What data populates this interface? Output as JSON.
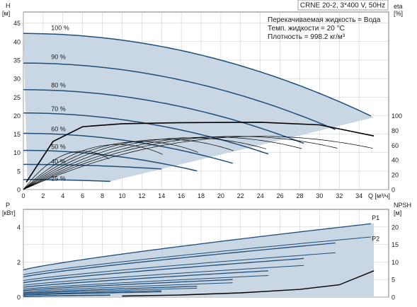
{
  "header": {
    "model": "CRNE 20-2, 3*400 V, 50Hz",
    "fluid": "Перекачиваемая жидкость = Вода",
    "temperature": "Темп. жидкости = 20 °C",
    "density": "Плотность = 998.2 кг/м³"
  },
  "colors": {
    "band": "#c9d6e3",
    "curve_dark": "#1f4e79",
    "curve_black": "#000000",
    "grid": "#c8c8c8"
  },
  "chart_data": [
    {
      "type": "line",
      "name_ref": "head-chart",
      "ylabel_main": "H",
      "ylabel_unit": "[м]",
      "ylabel_right": "eta",
      "ylabel_right_unit": "[%]",
      "xlabel": "Q [м³/ч]",
      "xlim": [
        0,
        37
      ],
      "ylim": [
        0,
        48
      ],
      "xticks": [
        0,
        2,
        4,
        6,
        8,
        10,
        12,
        14,
        16,
        18,
        20,
        22,
        24,
        26,
        28,
        30,
        32,
        34
      ],
      "yticks": [
        0,
        5,
        10,
        15,
        20,
        25,
        30,
        35,
        40,
        45
      ],
      "eta_ticks": [
        0,
        20,
        40,
        60,
        80,
        100
      ],
      "eta_scale_per_head_unit": 0.2,
      "speed_labels": [
        {
          "label": "100 %",
          "x": 2.1,
          "y": 44.7
        },
        {
          "label": "90 %",
          "x": 2.1,
          "y": 36.8
        },
        {
          "label": "80 %",
          "x": 2.1,
          "y": 29.2
        },
        {
          "label": "70 %",
          "x": 2.1,
          "y": 22.8
        },
        {
          "label": "60 %",
          "x": 2.1,
          "y": 17.3
        },
        {
          "label": "50 %",
          "x": 2.1,
          "y": 12.5
        },
        {
          "label": "40 %",
          "x": 2.1,
          "y": 8.5
        },
        {
          "label": "25 %",
          "x": 2.1,
          "y": 3.9
        }
      ],
      "series": [
        {
          "speed": 1.0,
          "h0": 42.2,
          "a": 0.018,
          "qmax": 35.5
        },
        {
          "speed": 0.9,
          "h0": 34.2,
          "a": 0.018,
          "qmax": 31.9
        },
        {
          "speed": 0.8,
          "h0": 27.0,
          "a": 0.018,
          "qmax": 28.4
        },
        {
          "speed": 0.7,
          "h0": 20.7,
          "a": 0.018,
          "qmax": 24.8
        },
        {
          "speed": 0.6,
          "h0": 15.2,
          "a": 0.018,
          "qmax": 21.3
        },
        {
          "speed": 0.5,
          "h0": 10.6,
          "a": 0.018,
          "qmax": 17.7
        },
        {
          "speed": 0.4,
          "h0": 6.8,
          "a": 0.018,
          "qmax": 14.2
        },
        {
          "speed": 0.25,
          "h0": 2.7,
          "a": 0.018,
          "qmax": 8.9
        }
      ],
      "eta_series": [
        {
          "speed": 1.0,
          "peak_eta": 72,
          "q_peak": 24.0,
          "qmax": 35.5
        },
        {
          "speed": 0.9,
          "peak_eta": 72,
          "q_peak": 21.6,
          "qmax": 31.9
        },
        {
          "speed": 0.8,
          "peak_eta": 71,
          "q_peak": 19.2,
          "qmax": 28.4
        },
        {
          "speed": 0.7,
          "peak_eta": 70,
          "q_peak": 16.8,
          "qmax": 24.8
        },
        {
          "speed": 0.6,
          "peak_eta": 68,
          "q_peak": 14.4,
          "qmax": 21.3
        },
        {
          "speed": 0.5,
          "peak_eta": 65,
          "q_peak": 12.0,
          "qmax": 17.7
        },
        {
          "speed": 0.4,
          "peak_eta": 61,
          "q_peak": 9.6,
          "qmax": 14.2
        },
        {
          "speed": 0.25,
          "peak_eta": 52,
          "q_peak": 6.0,
          "qmax": 8.9
        }
      ],
      "eta_envelope": [
        {
          "q": 0.3,
          "h": 2
        },
        {
          "q": 3,
          "h": 13
        },
        {
          "q": 6,
          "h": 17
        },
        {
          "q": 10,
          "h": 17.8
        },
        {
          "q": 16,
          "h": 18.1
        },
        {
          "q": 24,
          "h": 18.2
        },
        {
          "q": 30,
          "h": 17.5
        },
        {
          "q": 35.5,
          "h": 14.5
        }
      ]
    },
    {
      "type": "line",
      "name_ref": "power-chart",
      "ylabel_main": "P",
      "ylabel_unit": "[кВт]",
      "ylabel_right": "NPSH",
      "ylabel_right_unit": "[м]",
      "xlim": [
        0,
        37
      ],
      "ylim": [
        0,
        5
      ],
      "yticks": [
        0,
        2,
        4
      ],
      "npsh_ticks": [
        0,
        5,
        10,
        15,
        20
      ],
      "npsh_scale_per_kw": 5,
      "labels": [
        {
          "label": "P1",
          "x": 35.0,
          "y": 4.4
        },
        {
          "label": "P2",
          "x": 35.0,
          "y": 3.2
        }
      ],
      "p1_series": [
        {
          "speed": 1.0,
          "p0": 1.55,
          "pmax": 4.2,
          "qmax": 35.5
        },
        {
          "speed": 0.9,
          "p0": 1.15,
          "pmax": 3.1,
          "qmax": 31.9
        },
        {
          "speed": 0.8,
          "p0": 0.82,
          "pmax": 2.2,
          "qmax": 28.4
        },
        {
          "speed": 0.7,
          "p0": 0.56,
          "pmax": 1.5,
          "qmax": 24.8
        },
        {
          "speed": 0.6,
          "p0": 0.38,
          "pmax": 1.0,
          "qmax": 21.3
        },
        {
          "speed": 0.5,
          "p0": 0.24,
          "pmax": 0.62,
          "qmax": 17.7
        },
        {
          "speed": 0.4,
          "p0": 0.14,
          "pmax": 0.36,
          "qmax": 14.2
        },
        {
          "speed": 0.25,
          "p0": 0.05,
          "pmax": 0.12,
          "qmax": 8.9
        }
      ],
      "p2_factor": 0.82,
      "npsh_curve": [
        {
          "q": 10,
          "npsh": 0.3
        },
        {
          "q": 16,
          "npsh": 0.6
        },
        {
          "q": 22,
          "npsh": 1.2
        },
        {
          "q": 28,
          "npsh": 2.2
        },
        {
          "q": 32,
          "npsh": 3.5
        },
        {
          "q": 35.5,
          "npsh": 7.5
        }
      ]
    }
  ]
}
